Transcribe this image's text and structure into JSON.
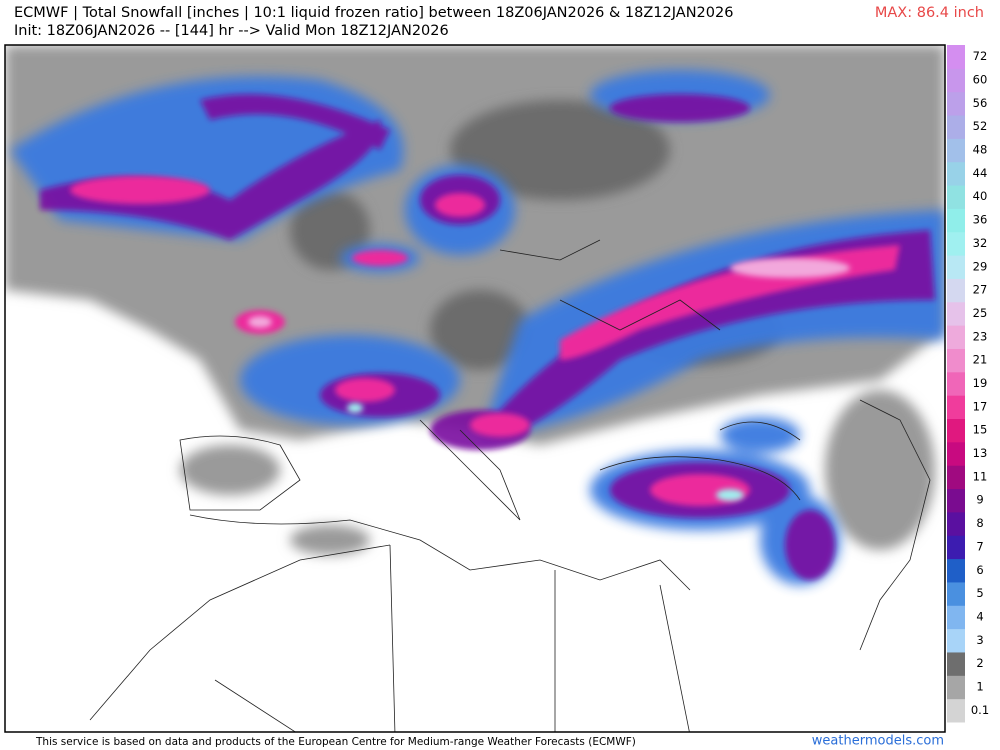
{
  "header": {
    "title": "ECMWF | Total Snowfall [inches | 10:1 liquid frozen ratio] between 18Z06JAN2026 & 18Z12JAN2026",
    "subtitle": "Init: 18Z06JAN2026 -- [144] hr --> Valid Mon 18Z12JAN2026",
    "max": "MAX: 86.4 inch"
  },
  "colorbar": {
    "ticks": [
      0.1,
      1,
      2,
      3,
      4,
      5,
      6,
      7,
      8,
      9,
      11,
      13,
      15,
      17,
      19,
      21,
      23,
      25,
      27,
      29,
      32,
      36,
      40,
      44,
      48,
      52,
      56,
      60,
      72
    ],
    "colors": [
      "#d4d4d4",
      "#a6a6a6",
      "#6e6e6e",
      "#a8d4f8",
      "#80b6f0",
      "#4a90e0",
      "#1f5fc8",
      "#3c1cb0",
      "#5a10a0",
      "#7a0c90",
      "#a00a80",
      "#c80a80",
      "#e0187f",
      "#f03c9c",
      "#f066b8",
      "#f08ccc",
      "#eeaadc",
      "#e6c2ea",
      "#d4d8f0",
      "#b8e8f4",
      "#a0f0f0",
      "#90eeea",
      "#90e2e2",
      "#98d2e8",
      "#a2c0ea",
      "#acaee8",
      "#bca0ea",
      "#c896ec",
      "#d48ef0"
    ]
  },
  "footer": {
    "note": "This service is based on data and products of the European Centre for Medium-range Weather Forecasts (ECMWF)",
    "site": "weathermodels.com"
  }
}
